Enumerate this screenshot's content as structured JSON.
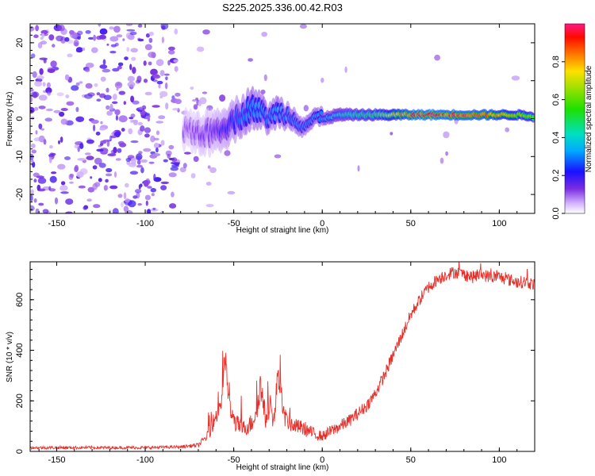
{
  "figure_title": "S225.2025.336.00.42.R03",
  "chart_data": [
    {
      "type": "heatmap",
      "name": "spectrogram",
      "title": "S225.2025.336.00.42.R03",
      "xlabel": "Height of straight line (km)",
      "ylabel": "Frequency (Hz)",
      "xlim": [
        -165,
        120
      ],
      "ylim": [
        -25,
        25
      ],
      "xticks": [
        -150,
        -100,
        -50,
        0,
        50,
        100
      ],
      "xtick_labels": [
        "-150",
        "-100",
        "-50",
        "0",
        "50",
        "100"
      ],
      "yticks": [
        -20,
        -10,
        0,
        10,
        20
      ],
      "ytick_labels": [
        "-20",
        "-10",
        "0",
        "10",
        "20"
      ],
      "description_note": "noise blobs fill left region (x < -80), then narrow band centered near 0 Hz with high amplitude (red) from about 40 to 120 km",
      "ridge": {
        "x": [
          -75,
          -65,
          -55,
          -45,
          -40,
          -35,
          -30,
          -25,
          -20,
          -15,
          -10,
          -5,
          0,
          10,
          20,
          30,
          40,
          50,
          60,
          70,
          80,
          90,
          100,
          110,
          120
        ],
        "y": [
          -3,
          -4,
          -2,
          1,
          3,
          2,
          0,
          2,
          1,
          0,
          -2,
          0,
          0,
          1,
          1,
          1,
          1,
          1,
          1,
          1,
          1,
          1,
          1,
          1,
          0.5
        ],
        "amp": [
          0.12,
          0.15,
          0.2,
          0.3,
          0.35,
          0.35,
          0.3,
          0.35,
          0.3,
          0.3,
          0.3,
          0.32,
          0.35,
          0.45,
          0.55,
          0.6,
          0.75,
          0.9,
          0.95,
          0.92,
          0.9,
          0.88,
          0.8,
          0.7,
          0.65
        ],
        "width_hz": [
          8,
          9,
          9,
          8,
          8,
          7,
          6,
          6,
          5,
          5,
          4,
          4,
          3,
          3,
          2.5,
          2.5,
          2.5,
          2.2,
          2.2,
          2.2,
          2.2,
          2.2,
          2.2,
          2.2,
          2.2
        ]
      },
      "colorbar": {
        "label": "Normalized spectral amplitude",
        "range": [
          0,
          1
        ],
        "ticks": [
          0.0,
          0.2,
          0.4,
          0.6,
          0.8
        ],
        "tick_labels": [
          "0.0",
          "0.2",
          "0.4",
          "0.6",
          "0.8"
        ]
      }
    },
    {
      "type": "line",
      "name": "snr",
      "xlabel": "Height of straight line (km)",
      "ylabel": "SNR (10 * v/v)",
      "xlim": [
        -165,
        120
      ],
      "ylim": [
        0,
        750
      ],
      "xticks": [
        -150,
        -100,
        -50,
        0,
        50,
        100
      ],
      "xtick_labels": [
        "-150",
        "-100",
        "-50",
        "0",
        "50",
        "100"
      ],
      "yticks": [
        0,
        200,
        400,
        600
      ],
      "ytick_labels": [
        "0",
        "200",
        "400",
        "600"
      ],
      "series": [
        {
          "name": "SNR",
          "color": "#e8302a",
          "x": [
            -165,
            -140,
            -120,
            -100,
            -80,
            -70,
            -65,
            -60,
            -57,
            -55,
            -52,
            -50,
            -45,
            -40,
            -37,
            -35,
            -32,
            -30,
            -27,
            -25,
            -22,
            -20,
            -15,
            -10,
            -5,
            0,
            5,
            10,
            15,
            20,
            25,
            30,
            35,
            40,
            45,
            50,
            55,
            60,
            65,
            70,
            75,
            80,
            85,
            90,
            95,
            100,
            105,
            110,
            115,
            120
          ],
          "values": [
            15,
            15,
            15,
            15,
            18,
            25,
            60,
            140,
            200,
            370,
            160,
            120,
            90,
            110,
            170,
            260,
            130,
            180,
            120,
            330,
            150,
            120,
            100,
            90,
            70,
            60,
            80,
            100,
            120,
            150,
            180,
            230,
            300,
            380,
            460,
            540,
            600,
            650,
            680,
            700,
            710,
            700,
            690,
            700,
            690,
            690,
            680,
            670,
            670,
            660
          ],
          "noise": [
            6,
            6,
            6,
            6,
            6,
            8,
            20,
            40,
            50,
            60,
            45,
            40,
            30,
            40,
            50,
            60,
            45,
            50,
            40,
            60,
            40,
            35,
            30,
            30,
            25,
            20,
            25,
            25,
            25,
            25,
            25,
            25,
            25,
            25,
            25,
            25,
            25,
            25,
            25,
            25,
            25,
            25,
            25,
            25,
            25,
            25,
            25,
            25,
            25,
            25
          ]
        }
      ]
    }
  ]
}
